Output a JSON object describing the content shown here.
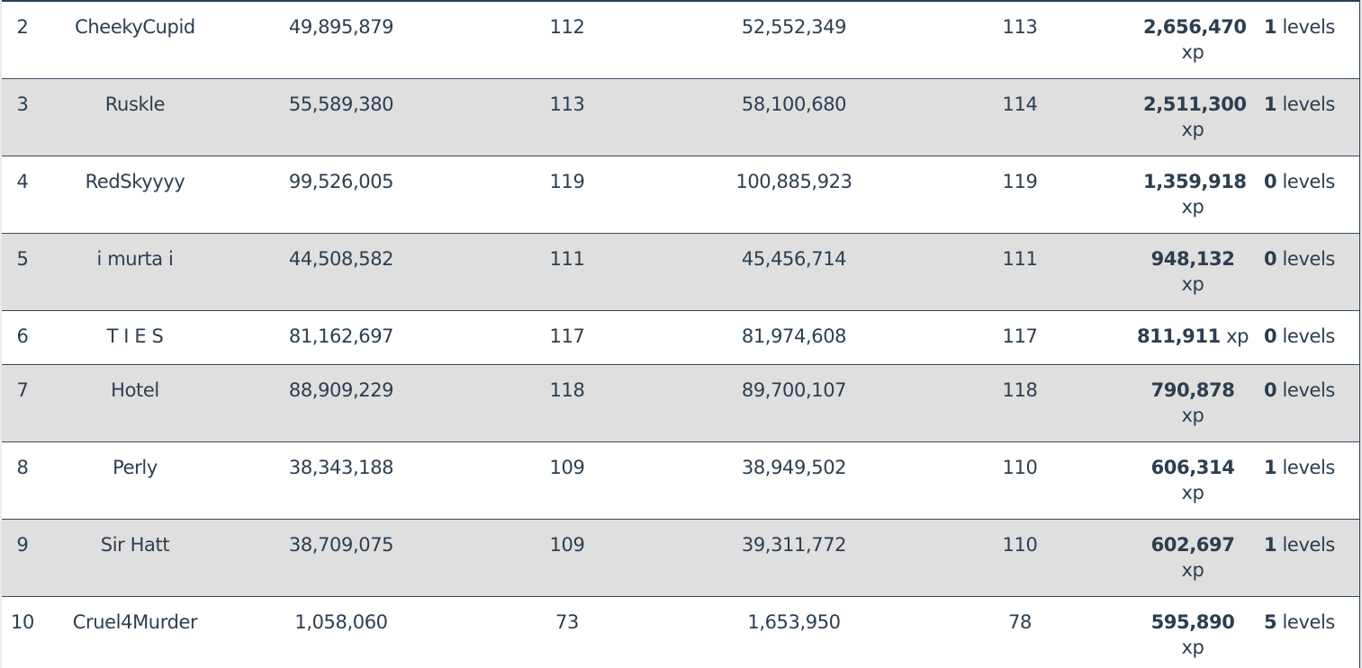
{
  "rows": [
    {
      "rank": "2",
      "name": "CheekyCupid",
      "start_xp": "49,895,879",
      "start_level": "112",
      "end_xp": "52,552,349",
      "end_level": "113",
      "gained_xp": "2,656,470",
      "xp_unit": "xp",
      "levels_gained": "1",
      "levels_unit": "levels"
    },
    {
      "rank": "3",
      "name": "Ruskle",
      "start_xp": "55,589,380",
      "start_level": "113",
      "end_xp": "58,100,680",
      "end_level": "114",
      "gained_xp": "2,511,300",
      "xp_unit": "xp",
      "levels_gained": "1",
      "levels_unit": "levels"
    },
    {
      "rank": "4",
      "name": "RedSkyyyy",
      "start_xp": "99,526,005",
      "start_level": "119",
      "end_xp": "100,885,923",
      "end_level": "119",
      "gained_xp": "1,359,918",
      "xp_unit": "xp",
      "levels_gained": "0",
      "levels_unit": "levels"
    },
    {
      "rank": "5",
      "name": "i murta i",
      "start_xp": "44,508,582",
      "start_level": "111",
      "end_xp": "45,456,714",
      "end_level": "111",
      "gained_xp": "948,132",
      "xp_unit": "xp",
      "levels_gained": "0",
      "levels_unit": "levels"
    },
    {
      "rank": "6",
      "name": "T I E S",
      "start_xp": "81,162,697",
      "start_level": "117",
      "end_xp": "81,974,608",
      "end_level": "117",
      "gained_xp": "811,911",
      "xp_unit": "xp",
      "levels_gained": "0",
      "levels_unit": "levels"
    },
    {
      "rank": "7",
      "name": "Hotel",
      "start_xp": "88,909,229",
      "start_level": "118",
      "end_xp": "89,700,107",
      "end_level": "118",
      "gained_xp": "790,878",
      "xp_unit": "xp",
      "levels_gained": "0",
      "levels_unit": "levels"
    },
    {
      "rank": "8",
      "name": "Perly",
      "start_xp": "38,343,188",
      "start_level": "109",
      "end_xp": "38,949,502",
      "end_level": "110",
      "gained_xp": "606,314",
      "xp_unit": "xp",
      "levels_gained": "1",
      "levels_unit": "levels"
    },
    {
      "rank": "9",
      "name": "Sir Hatt",
      "start_xp": "38,709,075",
      "start_level": "109",
      "end_xp": "39,311,772",
      "end_level": "110",
      "gained_xp": "602,697",
      "xp_unit": "xp",
      "levels_gained": "1",
      "levels_unit": "levels"
    },
    {
      "rank": "10",
      "name": "Cruel4Murder",
      "start_xp": "1,058,060",
      "start_level": "73",
      "end_xp": "1,653,950",
      "end_level": "78",
      "gained_xp": "595,890",
      "xp_unit": "xp",
      "levels_gained": "5",
      "levels_unit": "levels"
    }
  ]
}
